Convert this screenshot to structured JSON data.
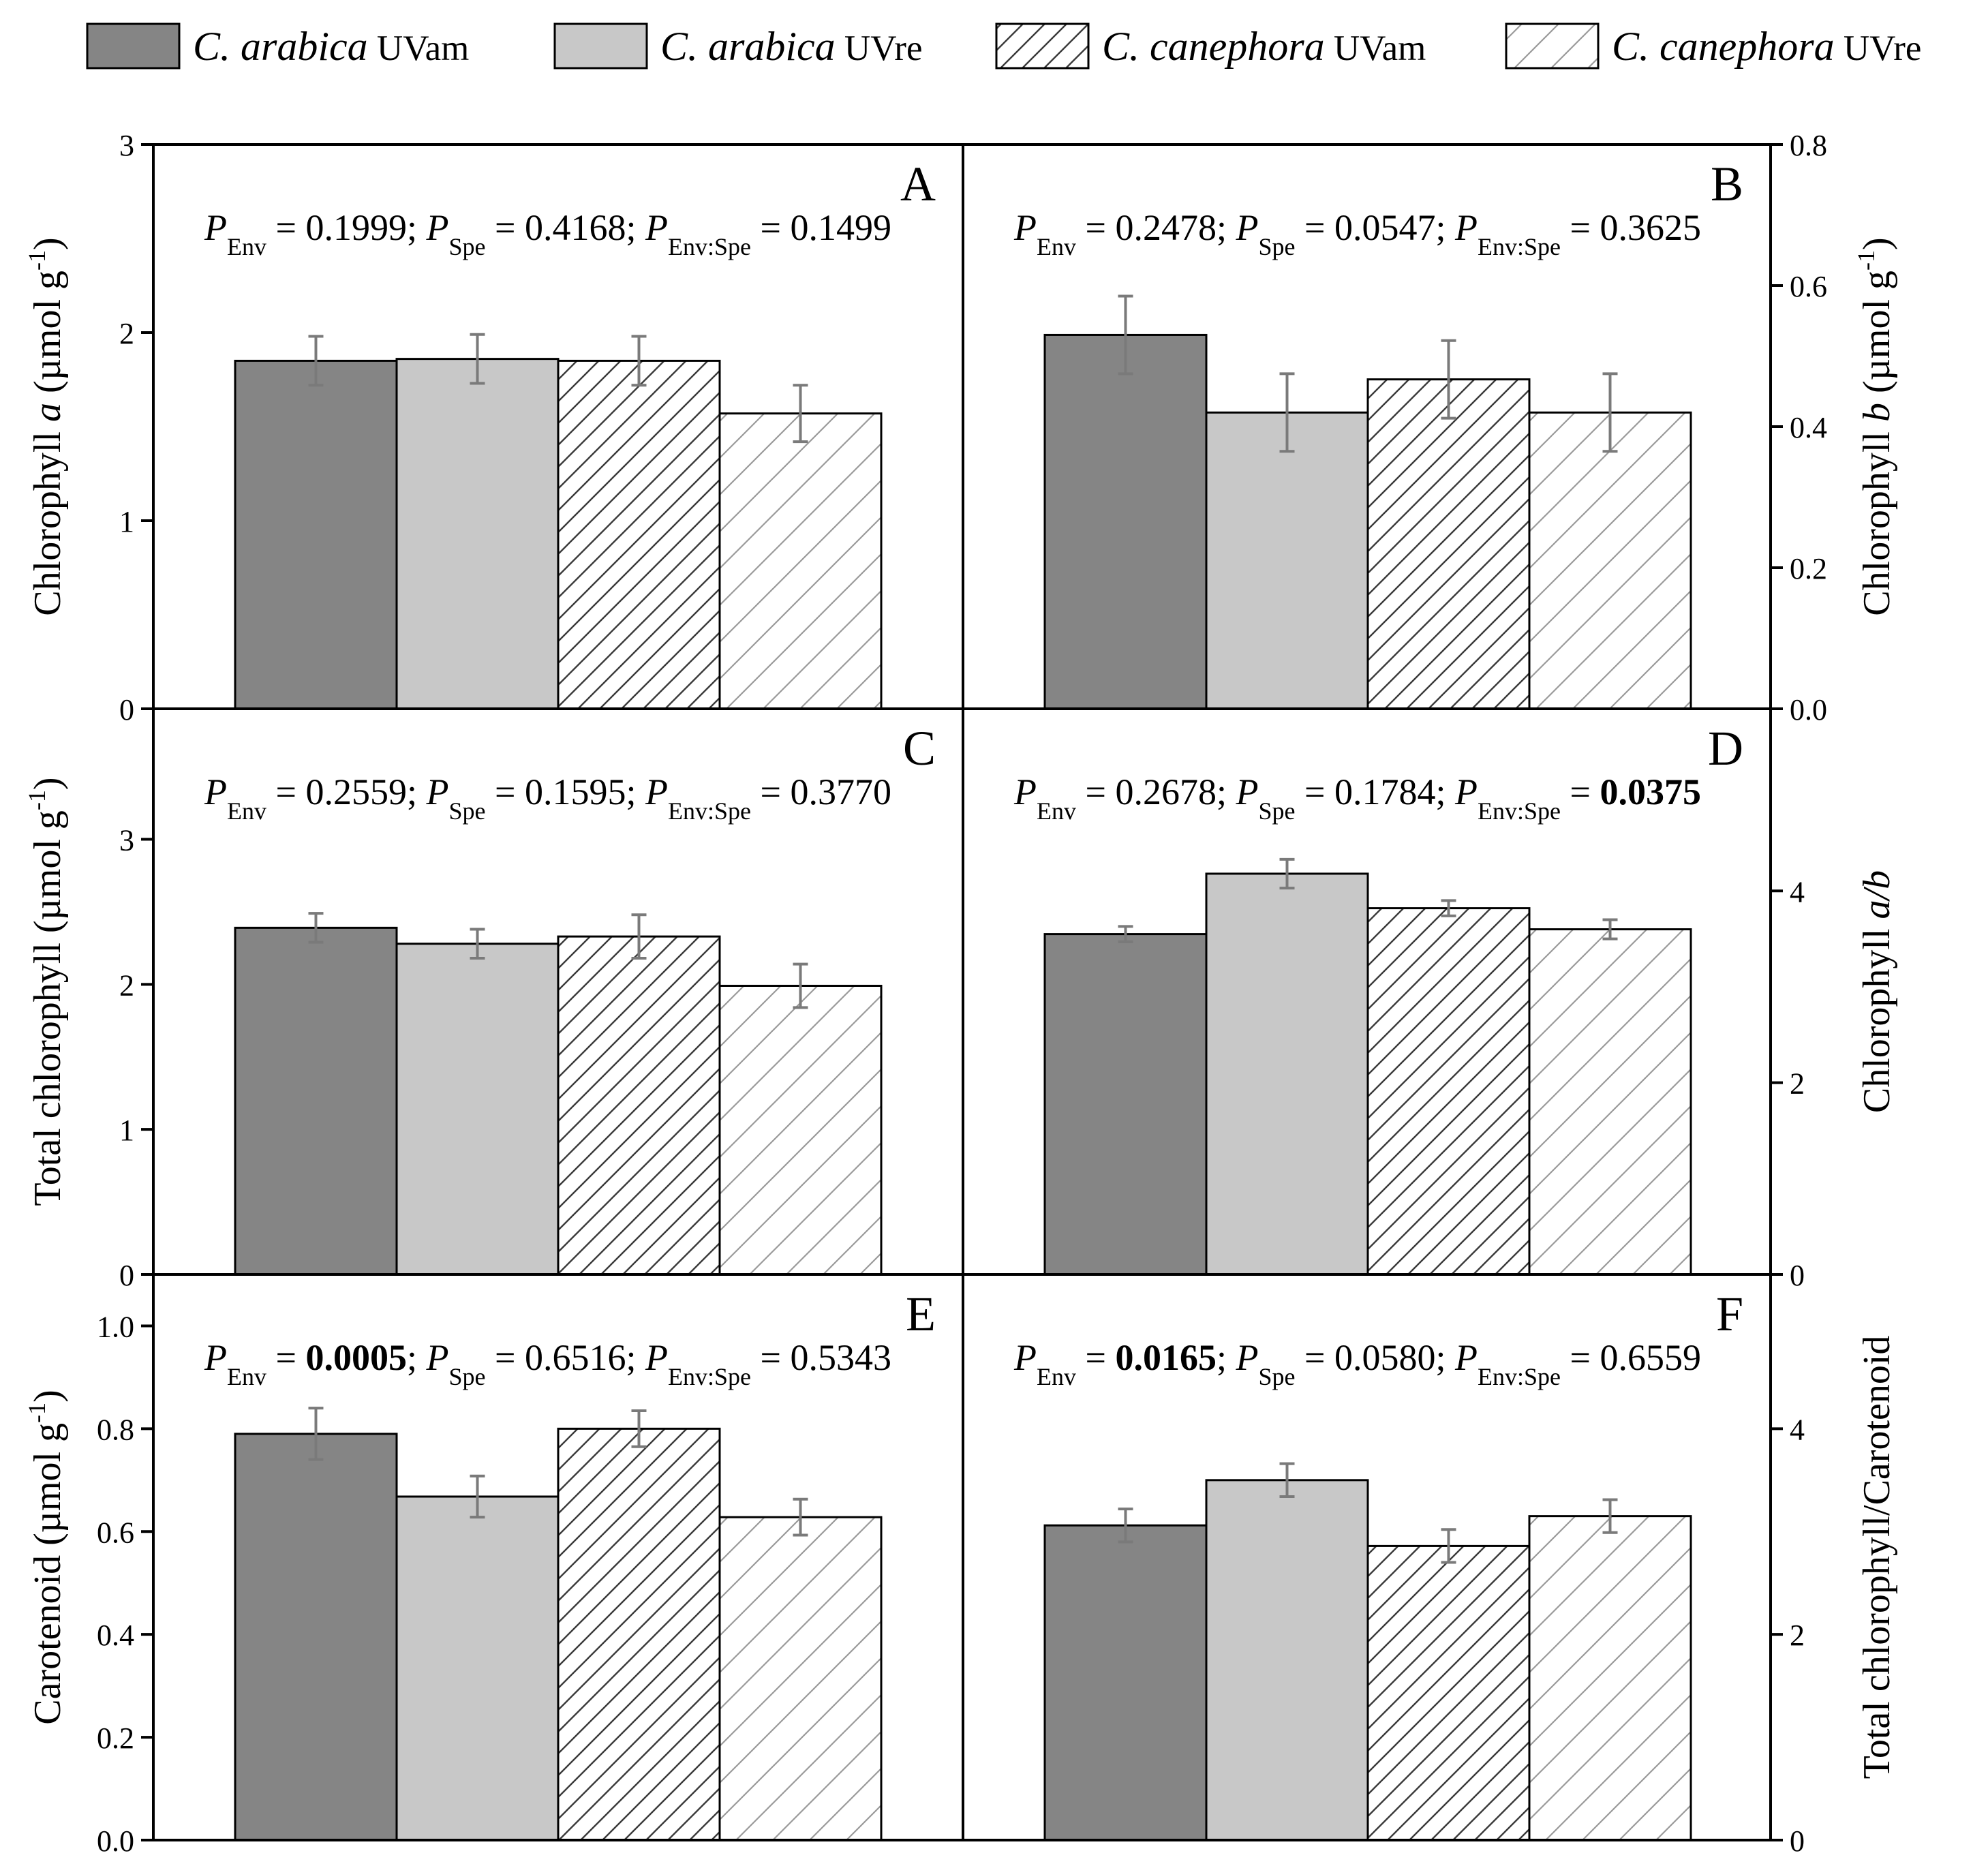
{
  "colors": {
    "arabica_uvam": "#858585",
    "arabica_uvre": "#c8c8c8",
    "canephora_uvam": "#ffffff",
    "canephora_uvre": "#ffffff",
    "hatch_dark": "#3a3a3a",
    "hatch_light": "#9a9a9a",
    "error_bar": "#7a7a7a",
    "axis": "#000000"
  },
  "legend": [
    {
      "species": "C. arabica",
      "treatment": "UVam",
      "fill": "solid-dark"
    },
    {
      "species": "C. arabica",
      "treatment": "UVre",
      "fill": "solid-light"
    },
    {
      "species": "C. canephora",
      "treatment": "UVam",
      "fill": "hatch-light"
    },
    {
      "species": "C. canephora",
      "treatment": "UVre",
      "fill": "hatch-lighter"
    }
  ],
  "chart_data": [
    {
      "type": "bar",
      "panel": "A",
      "axis_side": "left",
      "ylabel": {
        "pre": "Chlorophyll ",
        "ital": "a",
        "post": " (µmol g",
        "sup": "-1",
        "end": ")"
      },
      "ylim": [
        0,
        3
      ],
      "ticks": [
        0,
        1,
        2,
        3
      ],
      "tick_labels": [
        "0",
        "1",
        "2",
        "3"
      ],
      "categories": [
        "C. arabica UVam",
        "C. arabica UVre",
        "C. canephora UVam",
        "C. canephora UVre"
      ],
      "values": [
        1.85,
        1.86,
        1.85,
        1.57
      ],
      "errors": [
        0.13,
        0.13,
        0.13,
        0.15
      ],
      "stats": [
        {
          "label": "P",
          "sub": "Env",
          "value": "0.1999",
          "bold": false,
          "sep": "; "
        },
        {
          "label": "P",
          "sub": "Spe",
          "value": "0.4168",
          "bold": false,
          "sep": "; "
        },
        {
          "label": "P",
          "sub": "Env:Spe",
          "value": "0.1499",
          "bold": false,
          "sep": ""
        }
      ]
    },
    {
      "type": "bar",
      "panel": "B",
      "axis_side": "right",
      "ylabel": {
        "pre": "Chlorophyll ",
        "ital": "b",
        "post": " (µmol g",
        "sup": "-1",
        "end": ")"
      },
      "ylim": [
        0,
        0.8
      ],
      "ticks": [
        0,
        0.2,
        0.4,
        0.6,
        0.8
      ],
      "tick_labels": [
        "0.0",
        "0.2",
        "0.4",
        "0.6",
        "0.8"
      ],
      "categories": [
        "C. arabica UVam",
        "C. arabica UVre",
        "C. canephora UVam",
        "C. canephora UVre"
      ],
      "values": [
        0.53,
        0.42,
        0.467,
        0.42
      ],
      "errors": [
        0.055,
        0.055,
        0.055,
        0.055
      ],
      "stats": [
        {
          "label": "P",
          "sub": "Env",
          "value": "0.2478",
          "bold": false,
          "sep": "; "
        },
        {
          "label": "P",
          "sub": "Spe",
          "value": "0.0547",
          "bold": false,
          "sep": "; "
        },
        {
          "label": "P",
          "sub": "Env:Spe",
          "value": "0.3625",
          "bold": false,
          "sep": ""
        }
      ]
    },
    {
      "type": "bar",
      "panel": "C",
      "axis_side": "left",
      "ylabel": {
        "pre": "Total chlorophyll (µmol g",
        "ital": "",
        "post": "",
        "sup": "-1",
        "end": ")"
      },
      "ylim": [
        0,
        3.9
      ],
      "ticks": [
        0,
        1,
        2,
        3
      ],
      "tick_labels": [
        "0",
        "1",
        "2",
        "3"
      ],
      "categories": [
        "C. arabica UVam",
        "C. arabica UVre",
        "C. canephora UVam",
        "C. canephora UVre"
      ],
      "values": [
        2.39,
        2.28,
        2.33,
        1.99
      ],
      "errors": [
        0.1,
        0.1,
        0.15,
        0.15
      ],
      "stats": [
        {
          "label": "P",
          "sub": "Env",
          "value": "0.2559",
          "bold": false,
          "sep": "; "
        },
        {
          "label": "P",
          "sub": "Spe",
          "value": "0.1595",
          "bold": false,
          "sep": "; "
        },
        {
          "label": "P",
          "sub": "Env:Spe",
          "value": "0.3770",
          "bold": false,
          "sep": ""
        }
      ]
    },
    {
      "type": "bar",
      "panel": "D",
      "axis_side": "right",
      "ylabel": {
        "pre": "Chlorophyll ",
        "ital": "a/b",
        "post": "",
        "sup": "",
        "end": ""
      },
      "ylim": [
        0,
        5.9
      ],
      "ticks": [
        0,
        2,
        4
      ],
      "tick_labels": [
        "0",
        "2",
        "4"
      ],
      "categories": [
        "C. arabica UVam",
        "C. arabica UVre",
        "C. canephora UVam",
        "C. canephora UVre"
      ],
      "values": [
        3.55,
        4.18,
        3.82,
        3.6
      ],
      "errors": [
        0.08,
        0.15,
        0.08,
        0.1
      ],
      "stats": [
        {
          "label": "P",
          "sub": "Env",
          "value": "0.2678",
          "bold": false,
          "sep": "; "
        },
        {
          "label": "P",
          "sub": "Spe",
          "value": "0.1784",
          "bold": false,
          "sep": "; "
        },
        {
          "label": "P",
          "sub": "Env:Spe",
          "value": "0.0375",
          "bold": true,
          "sep": ""
        }
      ]
    },
    {
      "type": "bar",
      "panel": "E",
      "axis_side": "left",
      "ylabel": {
        "pre": "Carotenoid (µmol g",
        "ital": "",
        "post": "",
        "sup": "-1",
        "end": ")"
      },
      "ylim": [
        0,
        1.1
      ],
      "ticks": [
        0,
        0.2,
        0.4,
        0.6,
        0.8,
        1.0
      ],
      "tick_labels": [
        "0.0",
        "0.2",
        "0.4",
        "0.6",
        "0.8",
        "1.0"
      ],
      "categories": [
        "C. arabica UVam",
        "C. arabica UVre",
        "C. canephora UVam",
        "C. canephora UVre"
      ],
      "values": [
        0.79,
        0.668,
        0.8,
        0.628
      ],
      "errors": [
        0.05,
        0.04,
        0.035,
        0.035
      ],
      "stats": [
        {
          "label": "P",
          "sub": "Env",
          "value": "0.0005",
          "bold": true,
          "sep": "; "
        },
        {
          "label": "P",
          "sub": "Spe",
          "value": "0.6516",
          "bold": false,
          "sep": "; "
        },
        {
          "label": "P",
          "sub": "Env:Spe",
          "value": "0.5343",
          "bold": false,
          "sep": ""
        }
      ]
    },
    {
      "type": "bar",
      "panel": "F",
      "axis_side": "right",
      "ylabel": {
        "pre": "Total chlorophyll/Carotenoid",
        "ital": "",
        "post": "",
        "sup": "",
        "end": ""
      },
      "ylim": [
        0,
        5.5
      ],
      "ticks": [
        0,
        2,
        4
      ],
      "tick_labels": [
        "0",
        "2",
        "4"
      ],
      "categories": [
        "C. arabica UVam",
        "C. arabica UVre",
        "C. canephora UVam",
        "C. canephora UVre"
      ],
      "values": [
        3.06,
        3.5,
        2.86,
        3.15
      ],
      "errors": [
        0.16,
        0.16,
        0.16,
        0.16
      ],
      "stats": [
        {
          "label": "P",
          "sub": "Env",
          "value": "0.0165",
          "bold": true,
          "sep": "; "
        },
        {
          "label": "P",
          "sub": "Spe",
          "value": "0.0580",
          "bold": false,
          "sep": "; "
        },
        {
          "label": "P",
          "sub": "Env:Spe",
          "value": "0.6559",
          "bold": false,
          "sep": ""
        }
      ]
    }
  ]
}
